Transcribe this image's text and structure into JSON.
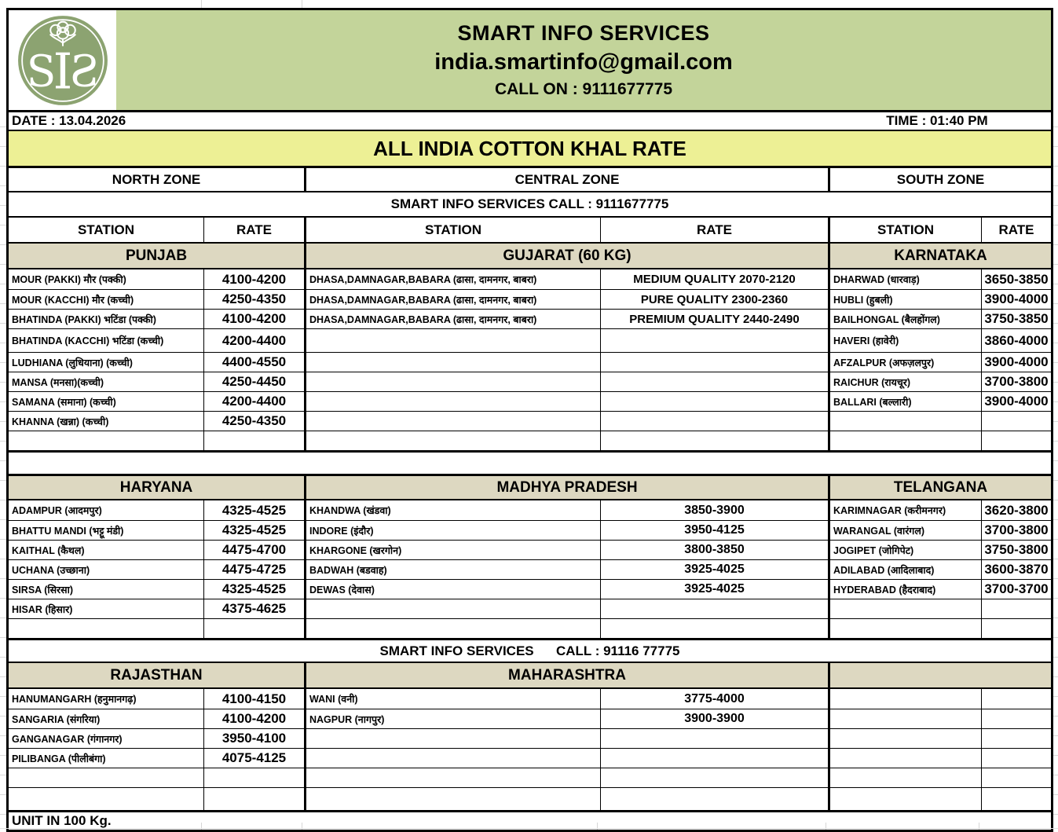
{
  "header": {
    "company": "SMART INFO SERVICES",
    "email": "india.smartinfo@gmail.com",
    "call_on": "CALL ON : 9111677775",
    "logo_text": "SIS",
    "logo_icon": "cotton-boll-icon"
  },
  "meta": {
    "date": "DATE : 13.04.2026",
    "time": "TIME : 01:40 PM"
  },
  "title": "ALL INDIA COTTON KHAL RATE",
  "zones": [
    "NORTH ZONE",
    "CENTRAL ZONE",
    "SOUTH ZONE"
  ],
  "banners": {
    "top": "SMART INFO SERVICES CALL : 9111677775",
    "mid": "SMART INFO SERVICES      CALL : 91116 77775"
  },
  "columns": [
    "STATION",
    "RATE",
    "STATION",
    "RATE",
    "STATION",
    "RATE"
  ],
  "sections": [
    {
      "regions": [
        "PUNJAB",
        "GUJARAT (60 KG)",
        "KARNATAKA"
      ],
      "rows": [
        [
          "MOUR (PAKKI) मौर (पक्की)",
          "4100-4200",
          "DHASA,DAMNAGAR,BABARA (ढासा, दामनगर, बाबरा)",
          "MEDIUM QUALITY 2070-2120",
          "DHARWAD (धारवाड़)",
          "3650-3850"
        ],
        [
          "MOUR (KACCHI) मौर (कच्ची)",
          "4250-4350",
          "DHASA,DAMNAGAR,BABARA (ढासा, दामनगर, बाबरा)",
          "PURE QUALITY 2300-2360",
          "HUBLI (हुबली)",
          "3900-4000"
        ],
        [
          "BHATINDA (PAKKI) भटिंडा (पक्की)",
          "4100-4200",
          "DHASA,DAMNAGAR,BABARA (ढासा, दामनगर, बाबरा)",
          "PREMIUM QUALITY 2440-2490",
          "BAILHONGAL (बैलहोंगल)",
          "3750-3850"
        ],
        [
          "BHATINDA (KACCHI) भटिंडा (कच्ची)",
          "4200-4400",
          "",
          "",
          "HAVERI (हावेरी)",
          "3860-4000"
        ],
        [
          "LUDHIANA (लुधियाना) (कच्ची)",
          "4400-4550",
          "",
          "",
          "AFZALPUR (अफज़लपुर)",
          "3900-4000"
        ],
        [
          "MANSA (मनसा)(कच्ची)",
          "4250-4450",
          "",
          "",
          "RAICHUR (रायचूर)",
          "3700-3800"
        ],
        [
          "SAMANA (समाना) (कच्ची)",
          "4200-4400",
          "",
          "",
          "BALLARI (बल्लारी)",
          "3900-4000"
        ],
        [
          "KHANNA (खन्ना) (कच्ची)",
          "4250-4350",
          "",
          "",
          "",
          ""
        ],
        [
          "",
          "",
          "",
          "",
          "",
          ""
        ]
      ]
    },
    {
      "regions": [
        "HARYANA",
        "MADHYA PRADESH",
        "TELANGANA"
      ],
      "rows": [
        [
          "ADAMPUR (आदमपुर)",
          "4325-4525",
          "KHANDWA (खंडवा)",
          "3850-3900",
          "KARIMNAGAR (करीमनगर)",
          "3620-3800"
        ],
        [
          "BHATTU MANDI (भट्टू मंडी)",
          "4325-4525",
          "INDORE (इंदौर)",
          "3950-4125",
          "WARANGAL (वारंगल)",
          "3700-3800"
        ],
        [
          "KAITHAL (कैथल)",
          "4475-4700",
          "KHARGONE (खरगोन)",
          "3800-3850",
          "JOGIPET (जोगिपेट)",
          "3750-3800"
        ],
        [
          "UCHANA (उच्छाना)",
          "4475-4725",
          "BADWAH (बडवाह)",
          "3925-4025",
          "ADILABAD (आदिलाबाद)",
          "3600-3870"
        ],
        [
          "SIRSA (सिरसा)",
          "4325-4525",
          "DEWAS (देवास)",
          "3925-4025",
          "HYDERABAD (हैदराबाद)",
          "3700-3700"
        ],
        [
          "HISAR (हिसार)",
          "4375-4625",
          "",
          "",
          "",
          ""
        ],
        [
          "",
          "",
          "",
          "",
          "",
          ""
        ]
      ]
    },
    {
      "regions": [
        "RAJASTHAN",
        "MAHARASHTRA",
        ""
      ],
      "rows": [
        [
          "HANUMANGARH (हनुमानगढ़)",
          "4100-4150",
          "WANI (वनी)",
          "3775-4000",
          "",
          ""
        ],
        [
          "SANGARIA (संगरिया)",
          "4100-4200",
          "NAGPUR (नागपुर)",
          "3900-3900",
          "",
          ""
        ],
        [
          "GANGANAGAR (गंगानगर)",
          "3950-4100",
          "",
          "",
          "",
          ""
        ],
        [
          "PILIBANGA (पीलीबंगा)",
          "4075-4125",
          "",
          "",
          "",
          ""
        ],
        [
          "",
          "",
          "",
          "",
          "",
          ""
        ],
        [
          "",
          "",
          "",
          "",
          "",
          ""
        ]
      ]
    }
  ],
  "footer_note": "UNIT IN 100 Kg.",
  "colors": {
    "banner_green": "#c3d49a",
    "title_yellow": "#edf095",
    "region_tan": "#ddd8c1",
    "logo_green": "#8ca371",
    "border_black": "#000000"
  }
}
